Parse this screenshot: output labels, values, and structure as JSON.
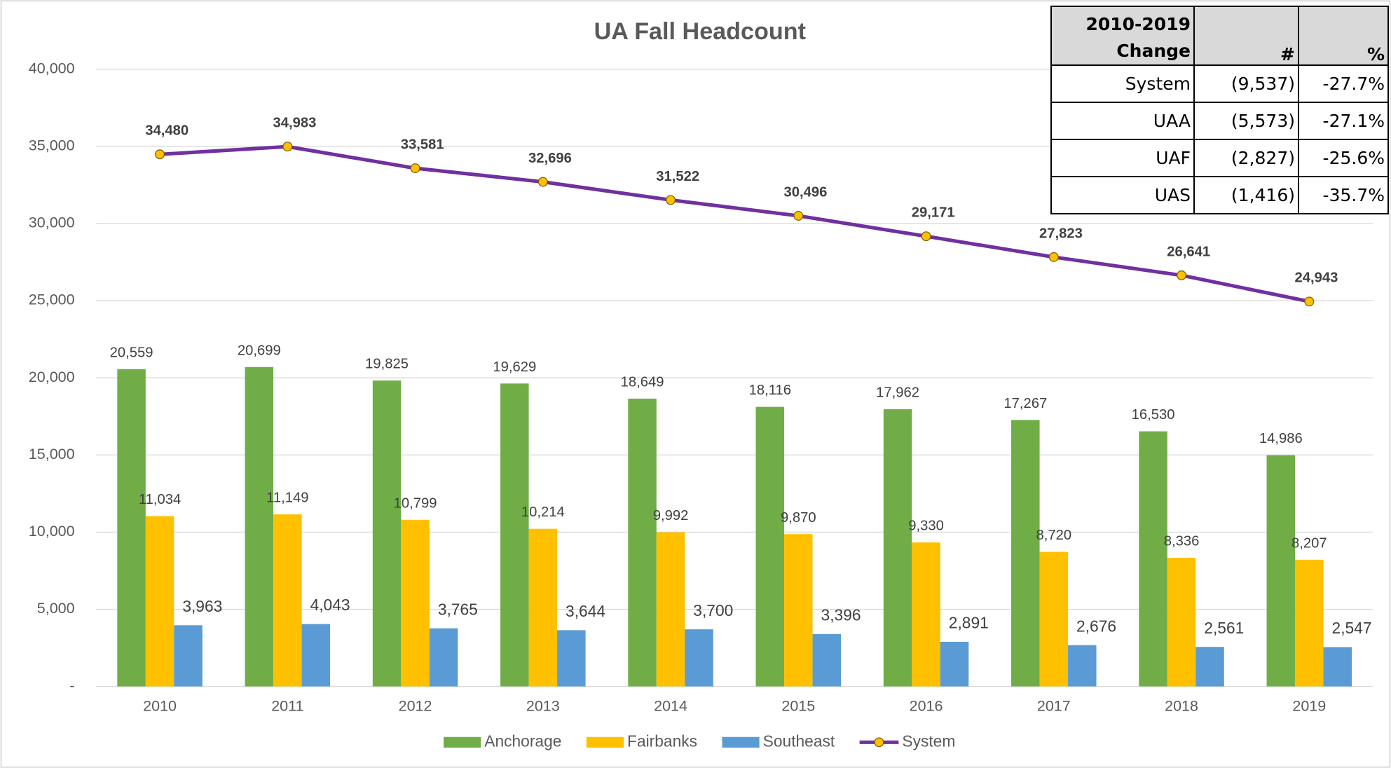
{
  "chart_data": {
    "type": "bar",
    "title": "UA Fall Headcount",
    "categories": [
      "2010",
      "2011",
      "2012",
      "2013",
      "2014",
      "2015",
      "2016",
      "2017",
      "2018",
      "2019"
    ],
    "series": [
      {
        "name": "Anchorage",
        "type": "bar",
        "color": "#70ad47",
        "values": [
          20559,
          20699,
          19825,
          19629,
          18649,
          18116,
          17962,
          17267,
          16530,
          14986
        ],
        "value_labels": [
          "20,559",
          "20,699",
          "19,825",
          "19,629",
          "18,649",
          "18,116",
          "17,962",
          "17,267",
          "16,530",
          "14,986"
        ]
      },
      {
        "name": "Fairbanks",
        "type": "bar",
        "color": "#ffc000",
        "values": [
          11034,
          11149,
          10799,
          10214,
          9992,
          9870,
          9330,
          8720,
          8336,
          8207
        ],
        "value_labels": [
          "11,034",
          "11,149",
          "10,799",
          "10,214",
          "9,992",
          "9,870",
          "9,330",
          "8,720",
          "8,336",
          "8,207"
        ]
      },
      {
        "name": "Southeast",
        "type": "bar",
        "color": "#5b9bd5",
        "values": [
          3963,
          4043,
          3765,
          3644,
          3700,
          3396,
          2891,
          2676,
          2561,
          2547
        ],
        "value_labels": [
          "3,963",
          "4,043",
          "3,765",
          "3,644",
          "3,700",
          "3,396",
          "2,891",
          "2,676",
          "2,561",
          "2,547"
        ]
      },
      {
        "name": "System",
        "type": "line",
        "color": "#7030a0",
        "values": [
          34480,
          34983,
          33581,
          32696,
          31522,
          30496,
          29171,
          27823,
          26641,
          24943
        ],
        "value_labels": [
          "34,480",
          "34,983",
          "33,581",
          "32,696",
          "31,522",
          "30,496",
          "29,171",
          "27,823",
          "26,641",
          "24,943"
        ]
      }
    ],
    "ylim": [
      0,
      40000
    ],
    "yticks": [
      {
        "value": 0,
        "label": "-"
      },
      {
        "value": 5000,
        "label": "5,000"
      },
      {
        "value": 10000,
        "label": "10,000"
      },
      {
        "value": 15000,
        "label": "15,000"
      },
      {
        "value": 20000,
        "label": "20,000"
      },
      {
        "value": 25000,
        "label": "25,000"
      },
      {
        "value": 30000,
        "label": "30,000"
      },
      {
        "value": 35000,
        "label": "35,000"
      },
      {
        "value": 40000,
        "label": "40,000"
      }
    ],
    "grid": true,
    "legend": "bottom"
  },
  "table": {
    "header": [
      "2010-2019 Change",
      "#",
      "%"
    ],
    "rows": [
      [
        "System",
        "(9,537)",
        "-27.7%"
      ],
      [
        "UAA",
        "(5,573)",
        "-27.1%"
      ],
      [
        "UAF",
        "(2,827)",
        "-25.6%"
      ],
      [
        "UAS",
        "(1,416)",
        "-35.7%"
      ]
    ]
  }
}
